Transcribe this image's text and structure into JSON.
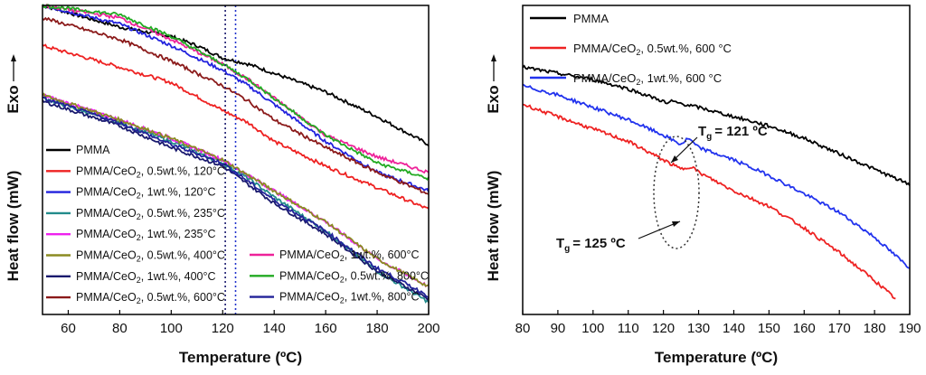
{
  "chart_data": [
    {
      "type": "line",
      "xlabel": "Temperature (ºC)",
      "ylabel": "Heat flow (mW)",
      "ylabel_secondary": "Exo",
      "xlim": [
        50,
        200
      ],
      "xticks": [
        "60",
        "80",
        "100",
        "120",
        "140",
        "160",
        "180",
        "200"
      ],
      "grid": false,
      "legend_position": "lower-left / lower-right inside plot",
      "vlines": [
        {
          "x": 121,
          "color": "#1a1a6e",
          "style": "dotted"
        },
        {
          "x": 125,
          "color": "#2233cc",
          "style": "dotted"
        }
      ],
      "series": [
        {
          "name": "PMMA",
          "color": "#000000",
          "x": [
            50,
            80,
            100,
            110,
            120,
            130,
            140,
            160,
            180,
            200
          ],
          "y": [
            100,
            93,
            90,
            87,
            83,
            81,
            78,
            72,
            64,
            55
          ]
        },
        {
          "name": "PMMA/CeO₂, 0.5wt.%, 120°C",
          "color": "#ee2222",
          "x": [
            50,
            80,
            100,
            120,
            130,
            140,
            160,
            180,
            200
          ],
          "y": [
            87,
            80,
            75,
            66,
            62,
            56,
            48,
            41,
            34
          ]
        },
        {
          "name": "PMMA/CeO₂, 1wt.%, 120°C",
          "color": "#2222dd",
          "x": [
            50,
            80,
            100,
            120,
            130,
            140,
            160,
            180,
            200
          ],
          "y": [
            100,
            94,
            87,
            79,
            74,
            68,
            56,
            46,
            40
          ]
        },
        {
          "name": "PMMA/CeO₂, 0.5wt.%, 235°C",
          "color": "#228b8b",
          "x": [
            50,
            80,
            100,
            120,
            130,
            140,
            160,
            180,
            200
          ],
          "y": [
            70,
            62,
            56,
            49,
            44,
            38,
            27,
            14,
            4
          ]
        },
        {
          "name": "PMMA/CeO₂, 1wt.%, 235°C",
          "color": "#ee22ee",
          "x": [
            50,
            80,
            100,
            120,
            130,
            140,
            160,
            180,
            200
          ],
          "y": [
            71,
            63,
            57,
            50,
            45,
            40,
            30,
            18,
            9
          ]
        },
        {
          "name": "PMMA/CeO₂, 0.5wt.%, 400°C",
          "color": "#8b8b22",
          "x": [
            50,
            80,
            100,
            120,
            130,
            140,
            160,
            180,
            200
          ],
          "y": [
            71,
            63,
            57,
            50,
            45,
            40,
            30,
            18,
            9
          ]
        },
        {
          "name": "PMMA/CeO₂, 1wt.%, 400°C",
          "color": "#1a1a6e",
          "x": [
            50,
            80,
            100,
            120,
            130,
            140,
            160,
            180,
            200
          ],
          "y": [
            69,
            61,
            54,
            48,
            42,
            36,
            26,
            14,
            5
          ]
        },
        {
          "name": "PMMA/CeO₂, 0.5wt.%, 600°C",
          "color": "#8b1a1a",
          "x": [
            50,
            80,
            100,
            120,
            130,
            140,
            160,
            180,
            200
          ],
          "y": [
            96,
            89,
            82,
            74,
            69,
            63,
            54,
            46,
            39
          ]
        },
        {
          "name": "PMMA/CeO₂, 1wt.%, 600°C",
          "color": "#ee2299",
          "x": [
            50,
            80,
            100,
            120,
            130,
            140,
            160,
            180,
            200
          ],
          "y": [
            100,
            96,
            89,
            81,
            76,
            70,
            58,
            51,
            46
          ]
        },
        {
          "name": "PMMA/CeO₂, 0.5wt.%, 800°C",
          "color": "#22aa22",
          "x": [
            50,
            80,
            100,
            120,
            130,
            140,
            160,
            180,
            200
          ],
          "y": [
            100,
            97,
            90,
            81,
            76,
            70,
            58,
            49,
            44
          ]
        },
        {
          "name": "PMMA/CeO₂, 1wt.%, 800°C",
          "color": "#222299",
          "x": [
            50,
            80,
            100,
            120,
            130,
            140,
            160,
            180,
            200
          ],
          "y": [
            70,
            62,
            55,
            49,
            43,
            37,
            27,
            15,
            6
          ]
        }
      ]
    },
    {
      "type": "line",
      "xlabel": "Temperature (ºC)",
      "ylabel": "Heat flow (mW)",
      "ylabel_secondary": "Exo",
      "xlim": [
        80,
        190
      ],
      "xticks": [
        "80",
        "90",
        "100",
        "110",
        "120",
        "130",
        "140",
        "150",
        "160",
        "170",
        "180",
        "190"
      ],
      "grid": false,
      "legend_position": "top-left",
      "annotations": [
        {
          "label": "T",
          "sub": "g",
          "text": "= 121 ºC",
          "x": 121
        },
        {
          "label": "T",
          "sub": "g",
          "text": "= 125 ºC",
          "x": 125
        }
      ],
      "series": [
        {
          "name": "PMMA",
          "color": "#000000",
          "x": [
            80,
            90,
            100,
            110,
            115,
            120,
            121,
            122,
            130,
            140,
            150,
            160,
            170,
            180,
            190
          ],
          "y": [
            80,
            78,
            76,
            73,
            71,
            69,
            68,
            69,
            67,
            64,
            61,
            57,
            52,
            47,
            42
          ]
        },
        {
          "name": "PMMA/CeO₂, 0.5wt.%, 600 °C",
          "color": "#ee2222",
          "x": [
            80,
            90,
            100,
            110,
            120,
            125,
            128,
            130,
            140,
            150,
            160,
            170,
            180,
            186
          ],
          "y": [
            68,
            64,
            60,
            56,
            50,
            47,
            48,
            46,
            40,
            35,
            28,
            20,
            11,
            5
          ]
        },
        {
          "name": "PMMA/CeO₂, 1wt.%, 600 °C",
          "color": "#2233ee",
          "x": [
            80,
            90,
            100,
            110,
            120,
            125,
            127,
            130,
            140,
            150,
            160,
            170,
            180,
            190
          ],
          "y": [
            74,
            71,
            67,
            63,
            58,
            55,
            57,
            54,
            50,
            45,
            39,
            33,
            25,
            15
          ]
        }
      ]
    }
  ],
  "legends": {
    "left_col1": [
      "PMMA",
      "PMMA/CeO₂, 0.5wt.%, 120°C",
      "PMMA/CeO₂, 1wt.%, 120°C",
      "PMMA/CeO₂, 0.5wt.%, 235°C",
      "PMMA/CeO₂, 1wt.%, 235°C",
      "PMMA/CeO₂, 0.5wt.%, 400°C",
      "PMMA/CeO₂, 1wt.%, 400°C",
      "PMMA/CeO₂, 0.5wt.%, 600°C"
    ],
    "left_col2": [
      "PMMA/CeO₂, 1wt.%, 600°C",
      "PMMA/CeO₂, 0.5wt.%, 800°C",
      "PMMA/CeO₂, 1wt.%, 800°C"
    ],
    "right": [
      "PMMA",
      "PMMA/CeO₂, 0.5wt.%, 600 °C",
      "PMMA/CeO₂, 1wt.%, 600 °C"
    ]
  }
}
